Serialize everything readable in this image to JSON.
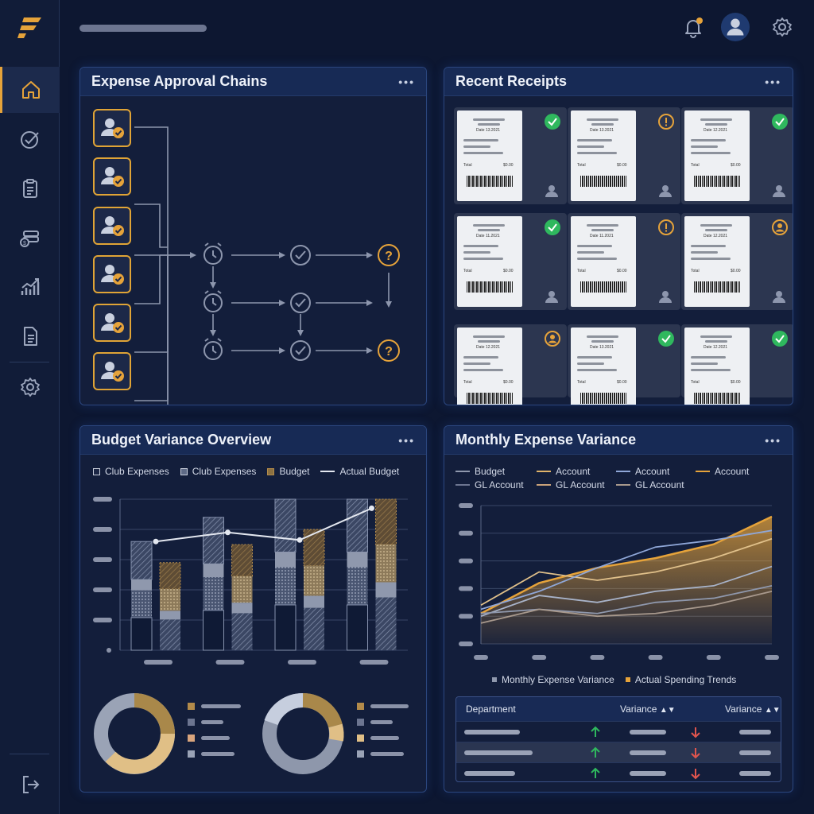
{
  "sidebar": {
    "items": [
      {
        "name": "home-icon",
        "active": true
      },
      {
        "name": "check-circle-icon",
        "active": false
      },
      {
        "name": "clipboard-icon",
        "active": false
      },
      {
        "name": "money-stack-icon",
        "active": false
      },
      {
        "name": "trend-chart-icon",
        "active": false
      },
      {
        "name": "document-icon",
        "active": false
      },
      {
        "name": "gear-icon",
        "active": false
      }
    ],
    "logout_icon": "logout-icon"
  },
  "topbar": {
    "icons": [
      "bell-icon",
      "user-avatar-icon",
      "settings-gear-icon"
    ]
  },
  "colors": {
    "accent": "#e6a33a",
    "success": "#2fb85e",
    "danger": "#e0554e",
    "panel": "#131e3b",
    "header": "#172a55"
  },
  "panels": {
    "approval": {
      "title": "Expense Approval Chains",
      "menu": "•••"
    },
    "receipts": {
      "title": "Recent Receipts",
      "menu": "•••",
      "items": [
        {
          "date": "Date 13.2021",
          "total_label": "Total",
          "amount": "$0.00",
          "status": "approved",
          "user": "person-icon"
        },
        {
          "date": "Date 13.2021",
          "total_label": "Total",
          "amount": "$0.00",
          "status": "warning",
          "user": "person-icon"
        },
        {
          "date": "Date 12.2021",
          "total_label": "Total",
          "amount": "$0.00",
          "status": "approved",
          "user": "person-icon"
        },
        {
          "date": "Date 11.2021",
          "total_label": "Total",
          "amount": "$0.00",
          "status": "approved",
          "user": "person-icon"
        },
        {
          "date": "Date 11.2021",
          "total_label": "Total",
          "amount": "$0.00",
          "status": "warning",
          "user": "person-icon"
        },
        {
          "date": "Date 12.2021",
          "total_label": "Total",
          "amount": "$0.00",
          "status": "assigned",
          "user": "person-icon"
        },
        {
          "date": "Date 12.2021",
          "total_label": "Total",
          "amount": "$0.00",
          "status": "assigned",
          "user": ""
        },
        {
          "date": "Date 13.2021",
          "total_label": "Total",
          "amount": "$0.00",
          "status": "approved",
          "user": ""
        },
        {
          "date": "Date 12.2021",
          "total_label": "Total",
          "amount": "$0.00",
          "status": "approved",
          "user": ""
        }
      ]
    },
    "budget": {
      "title": "Budget Variance Overview",
      "menu": "•••",
      "legend": [
        "Club Expenses",
        "Club Expenses",
        "Budget",
        "Actual Budget"
      ]
    },
    "monthly": {
      "title": "Monthly Expense Variance",
      "menu": "•••",
      "legend": [
        "Budget",
        "Account",
        "Account",
        "Account",
        "GL Account",
        "GL Account",
        "GL Account"
      ],
      "bottom_legend": [
        "Monthly Expense Variance",
        "Actual Spending Trends"
      ],
      "table": {
        "headers": [
          "Department",
          "Variance",
          "Variance"
        ],
        "rows": [
          {
            "trend": "up",
            "trend2": "down"
          },
          {
            "trend": "up",
            "trend2": "down"
          },
          {
            "trend": "up",
            "trend2": "down"
          }
        ]
      }
    }
  },
  "chart_data": [
    {
      "type": "bar",
      "title": "Budget Variance Overview",
      "categories": [
        "",
        "",
        "",
        ""
      ],
      "series": [
        {
          "name": "Club Expenses",
          "values": [
            0.72,
            0.88,
            1.0,
            1.0
          ]
        },
        {
          "name": "Budget",
          "values": [
            0.58,
            0.7,
            0.8,
            1.0
          ]
        },
        {
          "name": "Actual Budget",
          "values": [
            0.72,
            0.78,
            0.73,
            0.94
          ]
        }
      ],
      "ylim": [
        0,
        1
      ],
      "grid": true,
      "legend_position": "top"
    },
    {
      "type": "line",
      "title": "Monthly Expense Variance",
      "x": [
        0,
        1,
        2,
        3,
        4,
        5
      ],
      "series": [
        {
          "values": [
            0.22,
            0.44,
            0.55,
            0.62,
            0.72,
            0.92
          ]
        },
        {
          "values": [
            0.28,
            0.52,
            0.46,
            0.52,
            0.62,
            0.76
          ]
        },
        {
          "values": [
            0.25,
            0.38,
            0.55,
            0.7,
            0.75,
            0.82
          ]
        },
        {
          "values": [
            0.2,
            0.35,
            0.3,
            0.38,
            0.42,
            0.56
          ]
        },
        {
          "values": [
            0.22,
            0.25,
            0.22,
            0.3,
            0.33,
            0.42
          ]
        },
        {
          "values": [
            0.15,
            0.25,
            0.2,
            0.22,
            0.28,
            0.38
          ]
        }
      ],
      "ylim": [
        0,
        1
      ],
      "grid": true,
      "legend_position": "top"
    }
  ]
}
